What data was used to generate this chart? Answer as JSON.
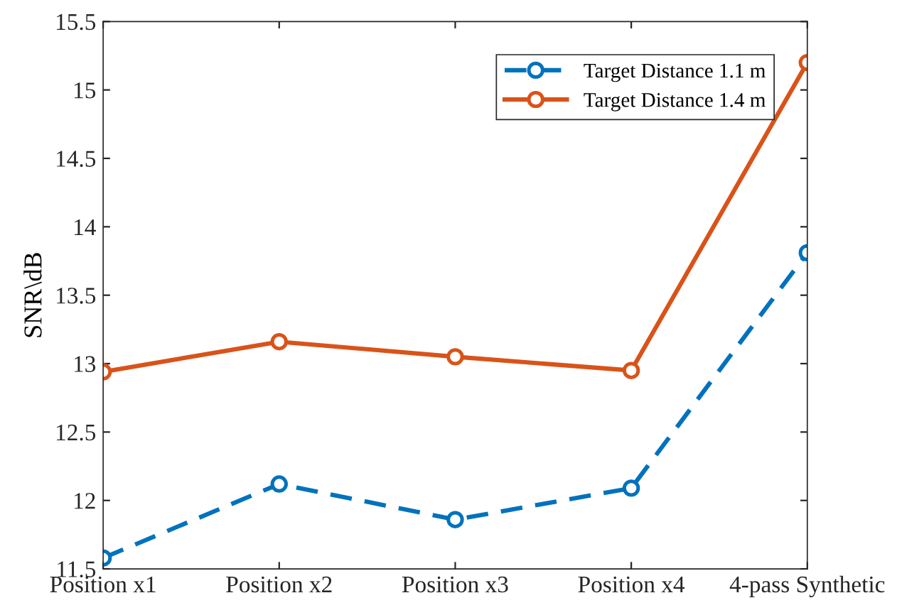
{
  "chart_data": {
    "type": "line",
    "ylabel": "SNR\\dB",
    "categories": [
      "Position x1",
      "Position x2",
      "Position x3",
      "Position x4",
      "4-pass Synthetic"
    ],
    "series": [
      {
        "name": "Target Distance 1.1 m",
        "color": "#0072bd",
        "values": [
          11.58,
          12.12,
          11.86,
          12.09,
          13.81
        ],
        "line_style": "dashed"
      },
      {
        "name": "Target Distance 1.4 m",
        "color": "#d95319",
        "values": [
          12.94,
          13.16,
          13.05,
          12.95,
          15.2
        ],
        "line_style": "solid"
      }
    ],
    "ylim": [
      11.5,
      15.5
    ],
    "yticks": [
      11.5,
      12,
      12.5,
      13,
      13.5,
      14,
      14.5,
      15,
      15.5
    ],
    "grid": false,
    "legend": "top right",
    "marker": "circle"
  }
}
